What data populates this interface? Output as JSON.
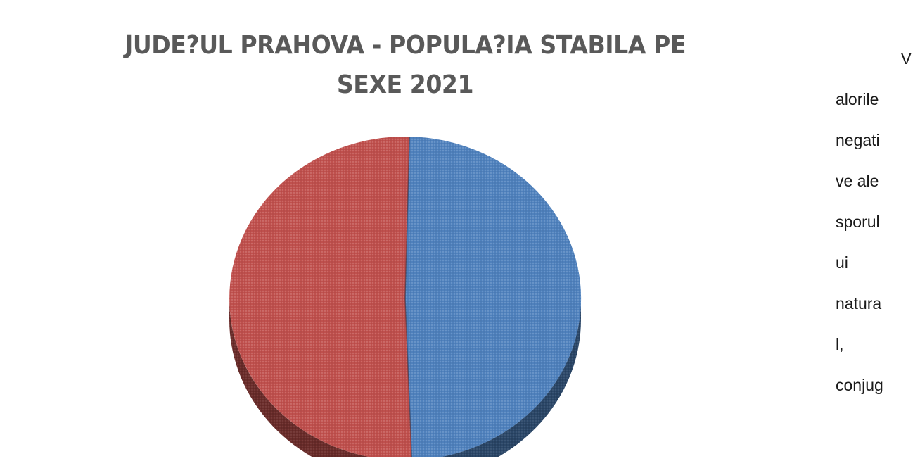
{
  "chart_data": {
    "type": "pie",
    "title_lines": [
      "JUDE?UL PRAHOVA - POPULA?IA STABILA PE",
      "SEXE 2021"
    ],
    "slices": [
      {
        "value": 49.0,
        "color": "#4f81bd"
      },
      {
        "value": 51.0,
        "color": "#c0504d"
      }
    ],
    "three_d": true,
    "legend": "none",
    "data_labels": "none"
  },
  "side_text": {
    "words": [
      "V",
      "alorile",
      "negati",
      "ve  ale",
      "sporul",
      "ui",
      "natura",
      "l,",
      "conjug"
    ]
  }
}
